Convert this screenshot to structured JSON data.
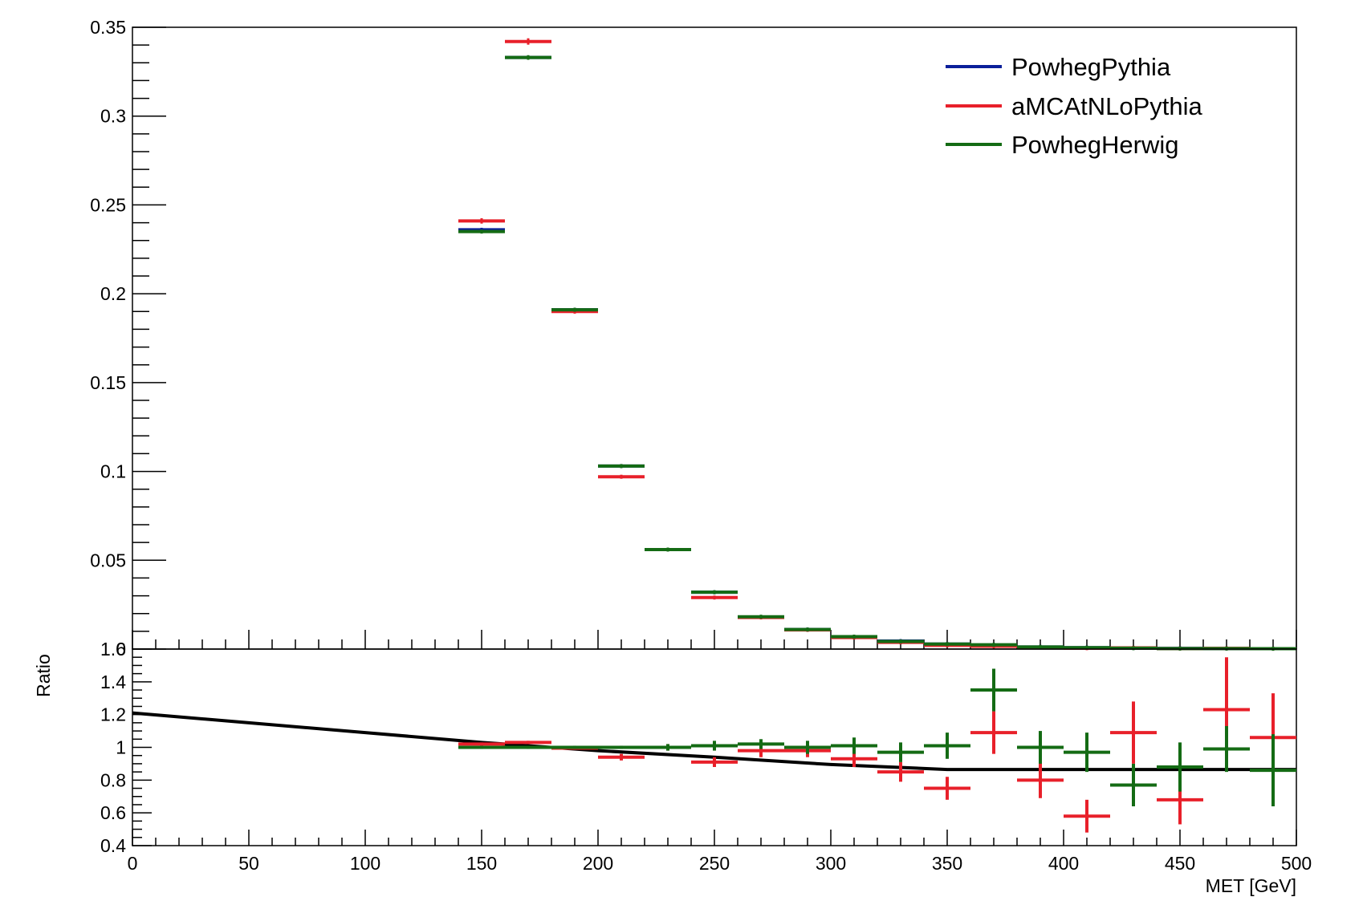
{
  "chart_data": [
    {
      "type": "scatter",
      "panel": "main",
      "title": "",
      "xlabel": "",
      "ylabel": "",
      "xlim": [
        0,
        500
      ],
      "ylim": [
        0,
        0.35
      ],
      "yticks": [
        "0.35",
        "0.3",
        "0.25",
        "0.2",
        "0.15",
        "0.1",
        "0.05",
        "0"
      ],
      "ytick_values": [
        0.35,
        0.3,
        0.25,
        0.2,
        0.15,
        0.1,
        0.05,
        0
      ],
      "grid": false,
      "legend_position": "top-right",
      "bin_edges": [
        140,
        160,
        180,
        200,
        220,
        240,
        260,
        280,
        300,
        320,
        340,
        360,
        380,
        400,
        420,
        440,
        460,
        480,
        500
      ],
      "series": [
        {
          "name": "PowhegPythia",
          "color": "#0b1f9a",
          "values": [
            0.236,
            0.333,
            0.191,
            0.103,
            0.056,
            0.032,
            0.018,
            0.011,
            0.007,
            0.0045,
            0.0028,
            0.0018,
            0.0012,
            0.0008,
            0.0006,
            0.0004,
            0.0003,
            0.0002
          ],
          "errors": [
            0.0008,
            0.0012,
            0.0009,
            0.0007,
            0.0005,
            0.0004,
            0.0003,
            0.0002,
            0.0002,
            0.0001,
            0.0001,
            0.0001,
            0.0001,
            0.0001,
            0.0001,
            0.0001,
            0.0001,
            0.0001
          ]
        },
        {
          "name": "aMCAtNLoPythia",
          "color": "#e8202a",
          "values": [
            0.241,
            0.342,
            0.19,
            0.097,
            0.056,
            0.029,
            0.0178,
            0.0108,
            0.0065,
            0.0038,
            0.0021,
            0.0016,
            0.001,
            0.0005,
            0.0007,
            0.0003,
            0.0004,
            0.0002
          ],
          "errors": [
            0.0015,
            0.0018,
            0.0012,
            0.0009,
            0.0006,
            0.0005,
            0.0004,
            0.0003,
            0.0002,
            0.0002,
            0.0002,
            0.0002,
            0.0001,
            0.0001,
            0.0001,
            0.0001,
            0.0001,
            0.0001
          ]
        },
        {
          "name": "PowhegHerwig",
          "color": "#146b14",
          "values": [
            0.235,
            0.333,
            0.191,
            0.103,
            0.056,
            0.032,
            0.0182,
            0.011,
            0.007,
            0.0043,
            0.0028,
            0.0024,
            0.0012,
            0.0008,
            0.0005,
            0.0003,
            0.0003,
            0.0002
          ],
          "errors": [
            0.0009,
            0.0013,
            0.001,
            0.0007,
            0.0005,
            0.0004,
            0.0003,
            0.0002,
            0.0002,
            0.0001,
            0.0001,
            0.0001,
            0.0001,
            0.0001,
            0.0001,
            0.0001,
            0.0001,
            0.0001
          ]
        }
      ]
    },
    {
      "type": "scatter",
      "panel": "ratio",
      "title": "",
      "xlabel": "MET [GeV]",
      "ylabel": "Ratio",
      "xlim": [
        0,
        500
      ],
      "ylim": [
        0.4,
        1.6
      ],
      "xticks": [
        "0",
        "50",
        "100",
        "150",
        "200",
        "250",
        "300",
        "350",
        "400",
        "450",
        "500"
      ],
      "xtick_values": [
        0,
        50,
        100,
        150,
        200,
        250,
        300,
        350,
        400,
        450,
        500
      ],
      "yticks": [
        "1.6",
        "1.4",
        "1.2",
        "1",
        "0.8",
        "0.6",
        "0.4"
      ],
      "ytick_values": [
        1.6,
        1.4,
        1.2,
        1.0,
        0.8,
        0.6,
        0.4
      ],
      "grid": false,
      "bin_edges": [
        140,
        160,
        180,
        200,
        220,
        240,
        260,
        280,
        300,
        320,
        340,
        360,
        380,
        400,
        420,
        440,
        460,
        480,
        500
      ],
      "series": [
        {
          "name": "aMCAtNLoPythia",
          "color": "#e8202a",
          "values": [
            1.02,
            1.03,
            0.995,
            0.94,
            1.0,
            0.91,
            0.98,
            0.98,
            0.93,
            0.85,
            0.75,
            1.09,
            0.8,
            0.58,
            1.09,
            0.68,
            1.23,
            1.06
          ],
          "errors": [
            0.01,
            0.01,
            0.01,
            0.02,
            0.02,
            0.03,
            0.04,
            0.04,
            0.05,
            0.06,
            0.07,
            0.13,
            0.11,
            0.1,
            0.19,
            0.15,
            0.32,
            0.27
          ]
        },
        {
          "name": "PowhegHerwig",
          "color": "#146b14",
          "values": [
            1.0,
            1.0,
            1.0,
            1.0,
            1.0,
            1.01,
            1.02,
            1.0,
            1.01,
            0.97,
            1.01,
            1.35,
            1.0,
            0.97,
            0.77,
            0.88,
            0.99,
            0.86
          ],
          "errors": [
            0.01,
            0.01,
            0.01,
            0.01,
            0.02,
            0.03,
            0.03,
            0.04,
            0.05,
            0.06,
            0.08,
            0.13,
            0.1,
            0.12,
            0.13,
            0.15,
            0.14,
            0.22
          ]
        }
      ],
      "fit_curve": {
        "color": "#000000",
        "x": [
          0,
          50,
          100,
          150,
          200,
          250,
          300,
          350,
          400,
          450,
          500
        ],
        "y": [
          1.21,
          1.15,
          1.09,
          1.03,
          0.98,
          0.94,
          0.895,
          0.865,
          0.865,
          0.865,
          0.865
        ]
      }
    }
  ]
}
